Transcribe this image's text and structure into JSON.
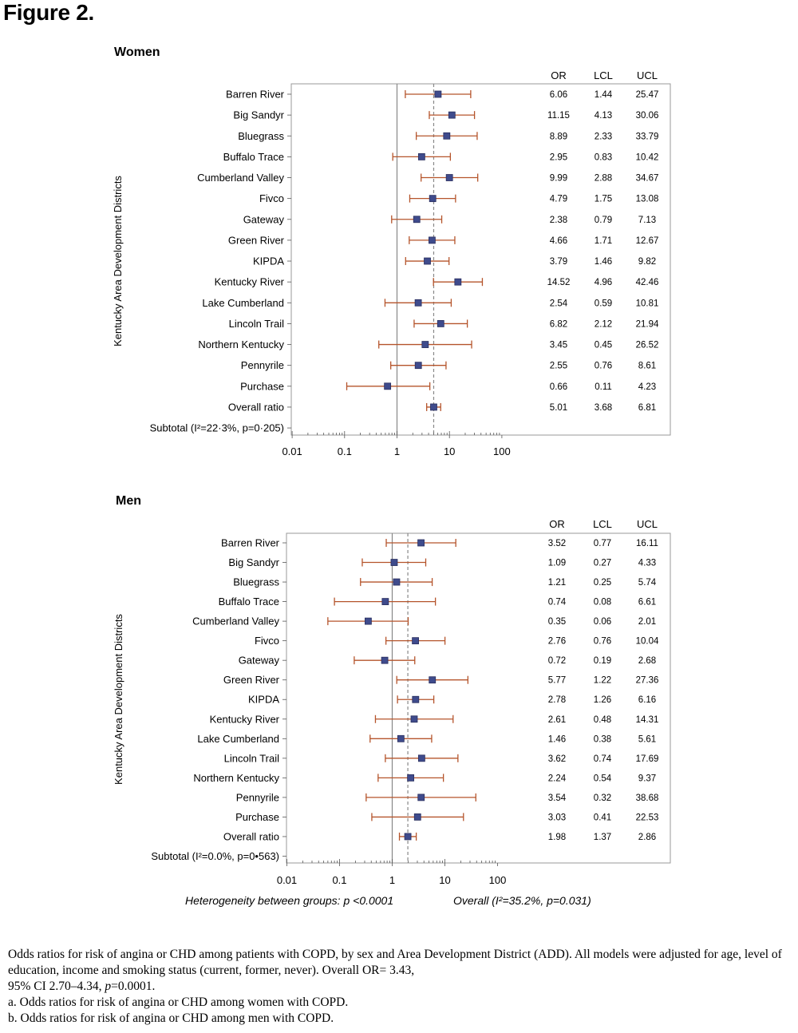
{
  "figure_title": "Figure 2.",
  "chart_data": [
    {
      "type": "forest",
      "panel_title": "Women",
      "ylabel": "Kentucky Area Development Districts",
      "xaxis": {
        "scale": "log",
        "ticks": [
          "0.01",
          "0.1",
          "1",
          "10",
          "100"
        ],
        "range": [
          0.01,
          100
        ]
      },
      "column_headers": [
        "OR",
        "LCL",
        "UCL"
      ],
      "reference_line": 1,
      "overall_line": 5.01,
      "rows": [
        {
          "label": "Barren River",
          "or": 6.06,
          "lcl": 1.44,
          "ucl": 25.47,
          "or_text": "6.06",
          "lcl_text": "1.44",
          "ucl_text": "25.47"
        },
        {
          "label": "Big Sandyr",
          "or": 11.15,
          "lcl": 4.13,
          "ucl": 30.06,
          "or_text": "11.15",
          "lcl_text": "4.13",
          "ucl_text": "30.06"
        },
        {
          "label": "Bluegrass",
          "or": 8.89,
          "lcl": 2.33,
          "ucl": 33.79,
          "or_text": "8.89",
          "lcl_text": "2.33",
          "ucl_text": "33.79"
        },
        {
          "label": "Buffalo Trace",
          "or": 2.95,
          "lcl": 0.83,
          "ucl": 10.42,
          "or_text": "2.95",
          "lcl_text": "0.83",
          "ucl_text": "10.42"
        },
        {
          "label": "Cumberland Valley",
          "or": 9.99,
          "lcl": 2.88,
          "ucl": 34.67,
          "or_text": "9.99",
          "lcl_text": "2.88",
          "ucl_text": "34.67"
        },
        {
          "label": "Fivco",
          "or": 4.79,
          "lcl": 1.75,
          "ucl": 13.08,
          "or_text": "4.79",
          "lcl_text": "1.75",
          "ucl_text": "13.08"
        },
        {
          "label": "Gateway",
          "or": 2.38,
          "lcl": 0.79,
          "ucl": 7.13,
          "or_text": "2.38",
          "lcl_text": "0.79",
          "ucl_text": "7.13"
        },
        {
          "label": "Green River",
          "or": 4.66,
          "lcl": 1.71,
          "ucl": 12.67,
          "or_text": "4.66",
          "lcl_text": "1.71",
          "ucl_text": "12.67"
        },
        {
          "label": "KIPDA",
          "or": 3.79,
          "lcl": 1.46,
          "ucl": 9.82,
          "or_text": "3.79",
          "lcl_text": "1.46",
          "ucl_text": "9.82"
        },
        {
          "label": "Kentucky River",
          "or": 14.52,
          "lcl": 4.96,
          "ucl": 42.46,
          "or_text": "14.52",
          "lcl_text": "4.96",
          "ucl_text": "42.46"
        },
        {
          "label": "Lake Cumberland",
          "or": 2.54,
          "lcl": 0.59,
          "ucl": 10.81,
          "or_text": "2.54",
          "lcl_text": "0.59",
          "ucl_text": "10.81"
        },
        {
          "label": "Lincoln Trail",
          "or": 6.82,
          "lcl": 2.12,
          "ucl": 21.94,
          "or_text": "6.82",
          "lcl_text": "2.12",
          "ucl_text": "21.94"
        },
        {
          "label": "Northern Kentucky",
          "or": 3.45,
          "lcl": 0.45,
          "ucl": 26.52,
          "or_text": "3.45",
          "lcl_text": "0.45",
          "ucl_text": "26.52"
        },
        {
          "label": "Pennyrile",
          "or": 2.55,
          "lcl": 0.76,
          "ucl": 8.61,
          "or_text": "2.55",
          "lcl_text": "0.76",
          "ucl_text": "8.61"
        },
        {
          "label": "Purchase",
          "or": 0.66,
          "lcl": 0.11,
          "ucl": 4.23,
          "or_text": "0.66",
          "lcl_text": "0.11",
          "ucl_text": "4.23"
        },
        {
          "label": "Overall ratio",
          "or": 5.01,
          "lcl": 3.68,
          "ucl": 6.81,
          "or_text": "5.01",
          "lcl_text": "3.68",
          "ucl_text": "6.81"
        },
        {
          "label": "Subtotal (I²=22·3%, p=0·205)"
        }
      ]
    },
    {
      "type": "forest",
      "panel_title": "Men",
      "ylabel": "Kentucky Area Development Districts",
      "xaxis": {
        "scale": "log",
        "ticks": [
          "0.01",
          "0.1",
          "1",
          "10",
          "100"
        ],
        "range": [
          0.01,
          100
        ]
      },
      "column_headers": [
        "OR",
        "LCL",
        "UCL"
      ],
      "reference_line": 1,
      "overall_line": 1.98,
      "rows": [
        {
          "label": "Barren River",
          "or": 3.52,
          "lcl": 0.77,
          "ucl": 16.11,
          "or_text": "3.52",
          "lcl_text": "0.77",
          "ucl_text": "16.11"
        },
        {
          "label": "Big Sandyr",
          "or": 1.09,
          "lcl": 0.27,
          "ucl": 4.33,
          "or_text": "1.09",
          "lcl_text": "0.27",
          "ucl_text": "4.33"
        },
        {
          "label": "Bluegrass",
          "or": 1.21,
          "lcl": 0.25,
          "ucl": 5.74,
          "or_text": "1.21",
          "lcl_text": "0.25",
          "ucl_text": "5.74"
        },
        {
          "label": "Buffalo Trace",
          "or": 0.74,
          "lcl": 0.08,
          "ucl": 6.61,
          "or_text": "0.74",
          "lcl_text": "0.08",
          "ucl_text": "6.61"
        },
        {
          "label": "Cumberland Valley",
          "or": 0.35,
          "lcl": 0.06,
          "ucl": 2.01,
          "or_text": "0.35",
          "lcl_text": "0.06",
          "ucl_text": "2.01"
        },
        {
          "label": "Fivco",
          "or": 2.76,
          "lcl": 0.76,
          "ucl": 10.04,
          "or_text": "2.76",
          "lcl_text": "0.76",
          "ucl_text": "10.04"
        },
        {
          "label": "Gateway",
          "or": 0.72,
          "lcl": 0.19,
          "ucl": 2.68,
          "or_text": "0.72",
          "lcl_text": "0.19",
          "ucl_text": "2.68"
        },
        {
          "label": "Green River",
          "or": 5.77,
          "lcl": 1.22,
          "ucl": 27.36,
          "or_text": "5.77",
          "lcl_text": "1.22",
          "ucl_text": "27.36"
        },
        {
          "label": "KIPDA",
          "or": 2.78,
          "lcl": 1.26,
          "ucl": 6.16,
          "or_text": "2.78",
          "lcl_text": "1.26",
          "ucl_text": "6.16"
        },
        {
          "label": "Kentucky River",
          "or": 2.61,
          "lcl": 0.48,
          "ucl": 14.31,
          "or_text": "2.61",
          "lcl_text": "0.48",
          "ucl_text": "14.31"
        },
        {
          "label": "Lake Cumberland",
          "or": 1.46,
          "lcl": 0.38,
          "ucl": 5.61,
          "or_text": "1.46",
          "lcl_text": "0.38",
          "ucl_text": "5.61"
        },
        {
          "label": "Lincoln Trail",
          "or": 3.62,
          "lcl": 0.74,
          "ucl": 17.69,
          "or_text": "3.62",
          "lcl_text": "0.74",
          "ucl_text": "17.69"
        },
        {
          "label": "Northern Kentucky",
          "or": 2.24,
          "lcl": 0.54,
          "ucl": 9.37,
          "or_text": "2.24",
          "lcl_text": "0.54",
          "ucl_text": "9.37"
        },
        {
          "label": "Pennyrile",
          "or": 3.54,
          "lcl": 0.32,
          "ucl": 38.68,
          "or_text": "3.54",
          "lcl_text": "0.32",
          "ucl_text": "38.68"
        },
        {
          "label": "Purchase",
          "or": 3.03,
          "lcl": 0.41,
          "ucl": 22.53,
          "or_text": "3.03",
          "lcl_text": "0.41",
          "ucl_text": "22.53"
        },
        {
          "label": "Overall ratio",
          "or": 1.98,
          "lcl": 1.37,
          "ucl": 2.86,
          "or_text": "1.98",
          "lcl_text": "1.37",
          "ucl_text": "2.86"
        },
        {
          "label": "Subtotal (I²=0.0%, p=0•563)"
        }
      ]
    }
  ],
  "footnotes": {
    "heterogeneity": "Heterogeneity between groups: p <0.0001",
    "overall": "Overall (I²=35.2%, p=0.031)"
  },
  "caption": {
    "line1": "Odds ratios for risk of angina or CHD among patients with COPD, by sex and Area Development District (ADD). All models were adjusted for age, level of education,  income and smoking status (current, former, never). Overall OR= 3.43,",
    "line2_prefix": "95% CI 2.70–4.34, ",
    "line2_p": "p",
    "line2_suffix": "=0.0001.",
    "note_a": "a. Odds ratios for risk of angina or CHD among women with COPD.",
    "note_b": "b. Odds ratios for risk of angina or CHD among men with COPD."
  },
  "colors": {
    "ci_line": "#b5542b",
    "marker": "#3f4b8c",
    "marker_stroke": "#2a2f5e",
    "frame": "#999999",
    "reference": "#888888",
    "overall_dash": "#888888"
  }
}
